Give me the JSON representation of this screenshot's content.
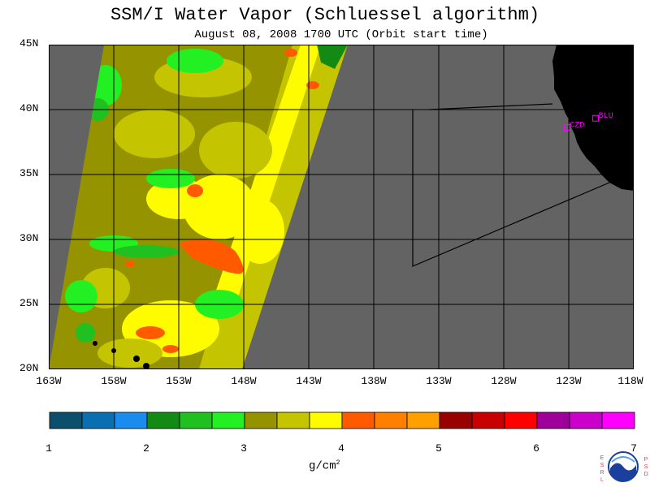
{
  "header": {
    "title": "SSM/I Water Vapor (Schluessel algorithm)",
    "subtitle": "August 08, 2008  1700 UTC  (Orbit start time)"
  },
  "axes": {
    "lat_labels": [
      "45N",
      "40N",
      "35N",
      "30N",
      "25N",
      "20N"
    ],
    "lon_labels": [
      "163W",
      "158W",
      "153W",
      "148W",
      "143W",
      "138W",
      "133W",
      "128W",
      "123W",
      "118W"
    ]
  },
  "stations": [
    {
      "label": "CZD",
      "lon": -123.1,
      "lat": 38.6
    },
    {
      "label": "BLU",
      "lon": -120.9,
      "lat": 39.3
    }
  ],
  "colorbar": {
    "ticks": [
      "1",
      "2",
      "3",
      "4",
      "5",
      "6",
      "7"
    ],
    "unit": "g/cm",
    "unit_exp": "2",
    "colors": [
      "#0b4f6c",
      "#0a6fb0",
      "#1a8cf0",
      "#128a14",
      "#20c020",
      "#22f022",
      "#959400",
      "#c4c400",
      "#fffc00",
      "#ff5a00",
      "#ff8000",
      "#ffa000",
      "#990000",
      "#c80000",
      "#ff0000",
      "#a0009a",
      "#cc00cc",
      "#ff00ff"
    ]
  },
  "logo": {
    "left_text": "ESRL",
    "right_text": "PSD",
    "name": "NOAA"
  },
  "colors": {
    "ocean": "#636363",
    "land": "#000000",
    "station": "#ff00ff"
  }
}
